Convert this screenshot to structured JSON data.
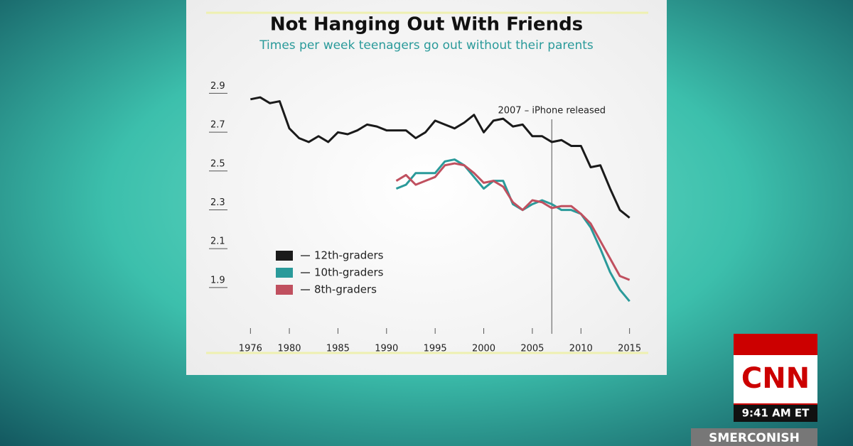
{
  "chart_data": {
    "type": "line",
    "title": "Not Hanging Out With Friends",
    "subtitle": "Times per week teenagers go out without their parents",
    "xlim": [
      1974,
      2017
    ],
    "xticks": [
      1976,
      1980,
      1985,
      1990,
      1995,
      2000,
      2005,
      2010,
      2015
    ],
    "ylim": [
      1.68,
      2.96
    ],
    "yticks": [
      1.9,
      2.1,
      2.3,
      2.5,
      2.7,
      2.9
    ],
    "annotation": {
      "text": "2007 – iPhone released",
      "x": 2007
    },
    "legend": "lower left",
    "series": [
      {
        "name": "12th-graders",
        "color": "#1a1a1a",
        "x": [
          1976,
          1977,
          1978,
          1979,
          1980,
          1981,
          1982,
          1983,
          1984,
          1985,
          1986,
          1987,
          1988,
          1989,
          1990,
          1991,
          1992,
          1993,
          1994,
          1995,
          1996,
          1997,
          1998,
          1999,
          2000,
          2001,
          2002,
          2003,
          2004,
          2005,
          2006,
          2007,
          2008,
          2009,
          2010,
          2011,
          2012,
          2013,
          2014,
          2015
        ],
        "values": [
          2.84,
          2.85,
          2.82,
          2.83,
          2.69,
          2.64,
          2.62,
          2.65,
          2.62,
          2.67,
          2.66,
          2.68,
          2.71,
          2.7,
          2.68,
          2.68,
          2.68,
          2.64,
          2.67,
          2.73,
          2.71,
          2.69,
          2.72,
          2.76,
          2.67,
          2.73,
          2.74,
          2.7,
          2.71,
          2.65,
          2.65,
          2.62,
          2.63,
          2.6,
          2.6,
          2.49,
          2.5,
          2.38,
          2.27,
          2.23
        ]
      },
      {
        "name": "10th-graders",
        "color": "#2a9a9a",
        "x": [
          1991,
          1992,
          1993,
          1994,
          1995,
          1996,
          1997,
          1998,
          1999,
          2000,
          2001,
          2002,
          2003,
          2004,
          2005,
          2006,
          2007,
          2008,
          2009,
          2010,
          2011,
          2012,
          2013,
          2014,
          2015
        ],
        "values": [
          2.38,
          2.4,
          2.46,
          2.46,
          2.46,
          2.52,
          2.53,
          2.5,
          2.44,
          2.38,
          2.42,
          2.42,
          2.3,
          2.27,
          2.3,
          2.32,
          2.3,
          2.27,
          2.27,
          2.25,
          2.18,
          2.07,
          1.95,
          1.86,
          1.8
        ]
      },
      {
        "name": "8th-graders",
        "color": "#c0505f",
        "x": [
          1991,
          1992,
          1993,
          1994,
          1995,
          1996,
          1997,
          1998,
          1999,
          2000,
          2001,
          2002,
          2003,
          2004,
          2005,
          2006,
          2007,
          2008,
          2009,
          2010,
          2011,
          2012,
          2013,
          2014,
          2015
        ],
        "values": [
          2.42,
          2.45,
          2.4,
          2.42,
          2.44,
          2.5,
          2.51,
          2.5,
          2.46,
          2.41,
          2.42,
          2.39,
          2.31,
          2.27,
          2.32,
          2.31,
          2.28,
          2.29,
          2.29,
          2.25,
          2.2,
          2.11,
          2.02,
          1.93,
          1.91
        ]
      }
    ]
  },
  "overlay": {
    "network": "CNN",
    "time": "9:41 AM ET",
    "show": "SMERCONISH"
  }
}
